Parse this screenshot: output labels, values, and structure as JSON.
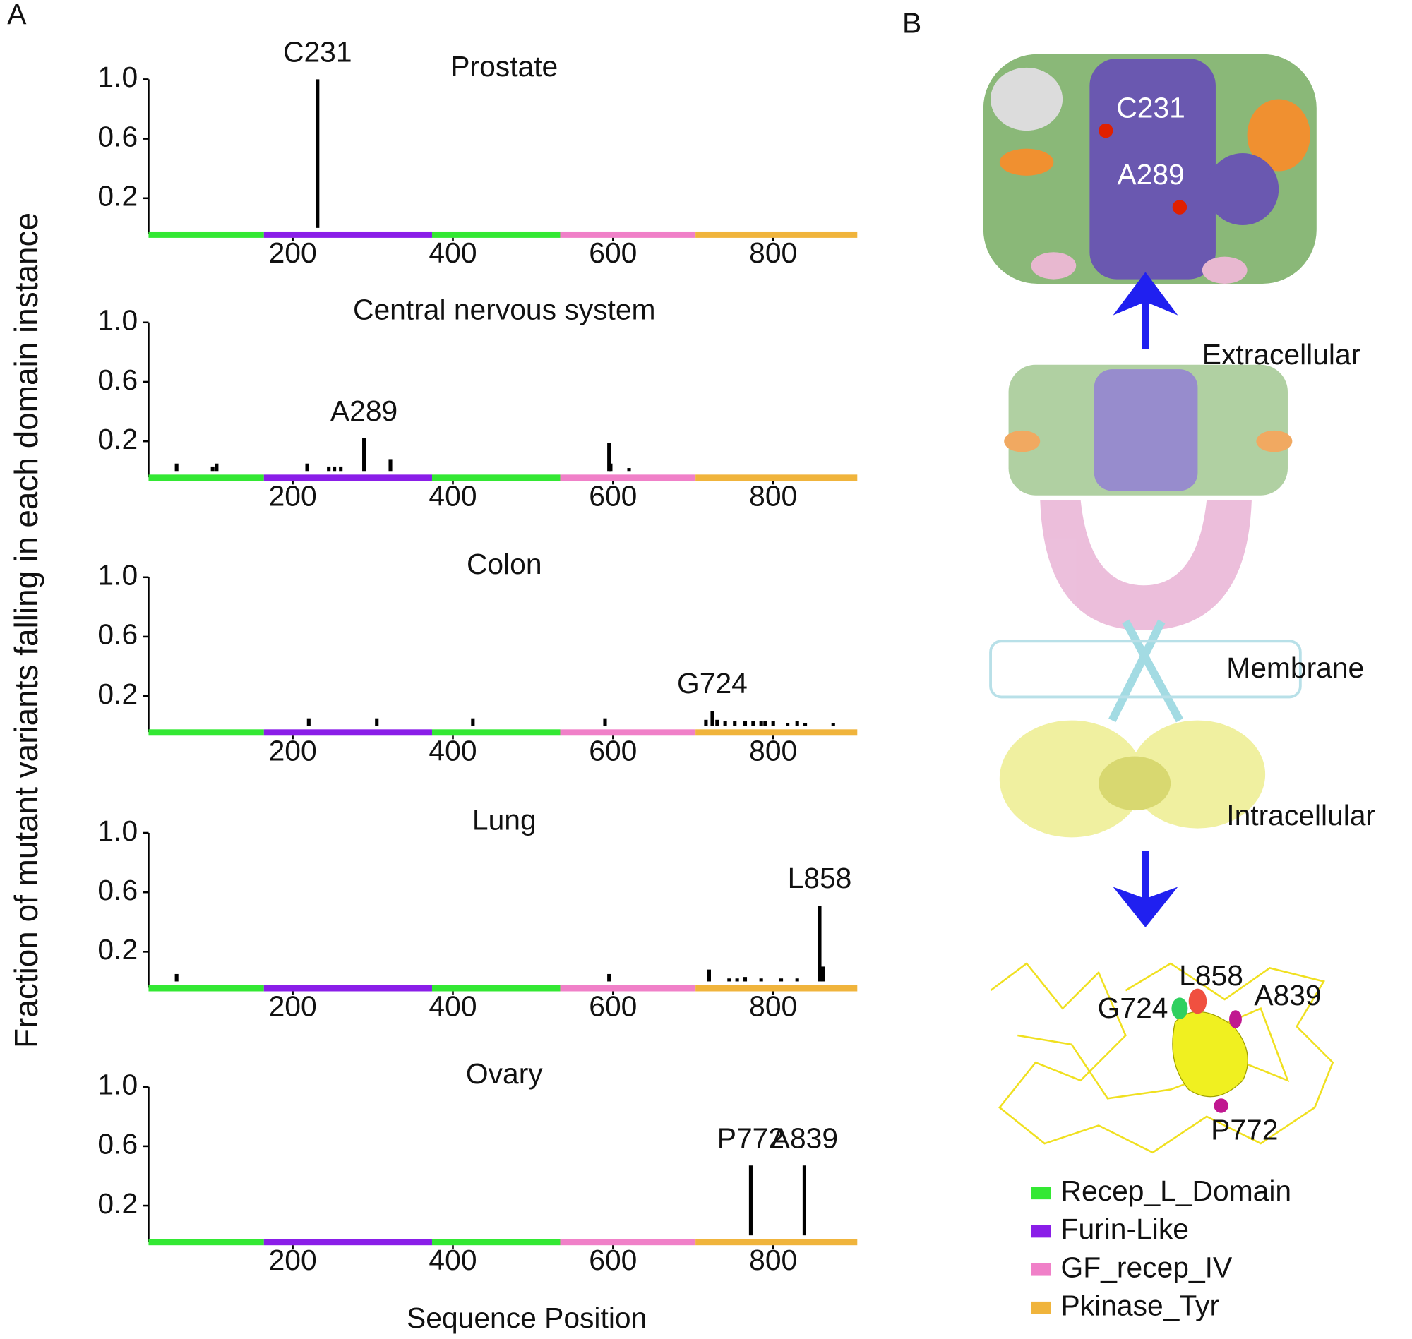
{
  "panel_labels": [
    "A",
    "B"
  ],
  "y_label": "Fraction of mutant variants falling in each domain instance",
  "x_label": "Sequence Position",
  "domains": [
    {
      "start": 20,
      "end": 164,
      "color": "#33e833"
    },
    {
      "start": 164,
      "end": 374,
      "color": "#8a1ee8"
    },
    {
      "start": 374,
      "end": 534,
      "color": "#33e833"
    },
    {
      "start": 534,
      "end": 703,
      "color": "#f080c8"
    },
    {
      "start": 703,
      "end": 905,
      "color": "#f0b43c"
    }
  ],
  "chart_data": [
    {
      "type": "bar",
      "title": "Prostate",
      "x": [
        231
      ],
      "values": [
        1.0
      ],
      "color": "#000000",
      "annotations": [
        {
          "text": "C231",
          "x": 231
        }
      ],
      "xlim": [
        20,
        905
      ],
      "ylim": [
        0,
        1
      ],
      "xticks": [
        200,
        400,
        600,
        800
      ],
      "yticks": [
        0.2,
        0.6,
        {
          "value": 1,
          "label": "1.0"
        }
      ]
    },
    {
      "type": "bar",
      "title": "Central nervous system",
      "x": [
        55,
        100,
        105,
        218,
        245,
        252,
        260,
        289,
        322,
        595,
        597,
        620
      ],
      "values": [
        0.05,
        0.03,
        0.05,
        0.05,
        0.03,
        0.03,
        0.03,
        0.22,
        0.08,
        0.19,
        0.05,
        0.02
      ],
      "color": "#000000",
      "annotations": [
        {
          "text": "A289",
          "x": 289
        }
      ],
      "xlim": [
        20,
        905
      ],
      "ylim": [
        0,
        1
      ],
      "xticks": [
        200,
        400,
        600,
        800
      ],
      "yticks": [
        0.2,
        0.6,
        {
          "value": 1,
          "label": "1.0"
        }
      ]
    },
    {
      "type": "bar",
      "title": "Colon",
      "x": [
        220,
        305,
        425,
        590,
        716,
        724,
        730,
        740,
        752,
        765,
        775,
        785,
        790,
        800,
        818,
        830,
        840,
        875
      ],
      "values": [
        0.05,
        0.05,
        0.05,
        0.05,
        0.04,
        0.1,
        0.04,
        0.03,
        0.03,
        0.03,
        0.03,
        0.03,
        0.03,
        0.03,
        0.02,
        0.03,
        0.02,
        0.02
      ],
      "color": "#000000",
      "annotations": [
        {
          "text": "G724",
          "x": 724
        }
      ],
      "xlim": [
        20,
        905
      ],
      "ylim": [
        0,
        1
      ],
      "xticks": [
        200,
        400,
        600,
        800
      ],
      "yticks": [
        0.2,
        0.6,
        {
          "value": 1,
          "label": "1.0"
        }
      ]
    },
    {
      "type": "bar",
      "title": "Lung",
      "x": [
        55,
        595,
        720,
        745,
        755,
        765,
        785,
        810,
        830,
        858,
        862
      ],
      "values": [
        0.05,
        0.05,
        0.08,
        0.02,
        0.02,
        0.03,
        0.02,
        0.02,
        0.02,
        0.51,
        0.1
      ],
      "color": "#000000",
      "annotations": [
        {
          "text": "L858",
          "x": 858
        }
      ],
      "xlim": [
        20,
        905
      ],
      "ylim": [
        0,
        1
      ],
      "xticks": [
        200,
        400,
        600,
        800
      ],
      "yticks": [
        0.2,
        0.6,
        {
          "value": 1,
          "label": "1.0"
        }
      ]
    },
    {
      "type": "bar",
      "title": "Ovary",
      "x": [
        772,
        839
      ],
      "values": [
        0.47,
        0.47
      ],
      "color": "#000000",
      "annotations": [
        {
          "text": "P772",
          "x": 772
        },
        {
          "text": "A839",
          "x": 839
        }
      ],
      "xlim": [
        20,
        905
      ],
      "ylim": [
        0,
        1
      ],
      "xticks": [
        200,
        400,
        600,
        800
      ],
      "yticks": [
        0.2,
        0.6,
        {
          "value": 1,
          "label": "1.0"
        }
      ]
    }
  ],
  "panel_b": {
    "top_labels": [
      "C231",
      "A289"
    ],
    "extracellular": "Extracellular",
    "membrane": "Membrane",
    "intracellular": "Intracellular",
    "bottom_labels": [
      "L858",
      "G724",
      "A839",
      "P772"
    ]
  },
  "legend": [
    {
      "name": "Recep_L_Domain",
      "color": "#33e833"
    },
    {
      "name": "Furin-Like",
      "color": "#8a1ee8"
    },
    {
      "name": "GF_recep_IV",
      "color": "#f080c8"
    },
    {
      "name": "Pkinase_Tyr",
      "color": "#f0b43c"
    }
  ]
}
